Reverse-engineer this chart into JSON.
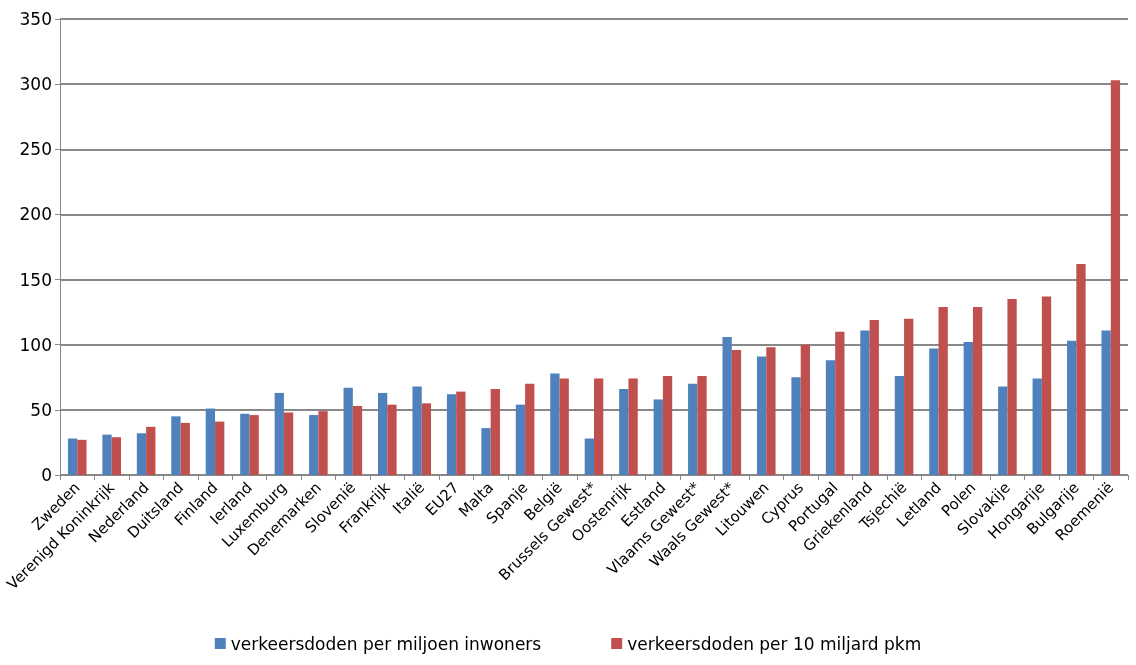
{
  "chart_data": {
    "type": "bar",
    "categories": [
      "Zweden",
      "Verenigd Koninkrijk",
      "Nederland",
      "Duitsland",
      "Finland",
      "Ierland",
      "Luxemburg",
      "Denemarken",
      "Slovenië",
      "Frankrijk",
      "Italië",
      "EU27",
      "Malta",
      "Spanje",
      "België",
      "Brussels Gewest*",
      "Oostenrijk",
      "Estland",
      "Vlaams Gewest*",
      "Waals Gewest*",
      "Litouwen",
      "Cyprus",
      "Portugal",
      "Griekenland",
      "Tsjechië",
      "Letland",
      "Polen",
      "Slovakije",
      "Hongarije",
      "Bulgarije",
      "Roemenië"
    ],
    "series": [
      {
        "name": "verkeersdoden per miljoen inwoners",
        "color": "#4f81bd",
        "values": [
          28,
          31,
          32,
          45,
          51,
          47,
          63,
          46,
          67,
          63,
          68,
          62,
          36,
          54,
          78,
          28,
          66,
          58,
          70,
          106,
          91,
          75,
          88,
          111,
          76,
          97,
          102,
          68,
          74,
          103,
          111
        ]
      },
      {
        "name": "verkeersdoden per 10 miljard pkm",
        "color": "#c0504d",
        "values": [
          27,
          29,
          37,
          40,
          41,
          46,
          48,
          49,
          53,
          54,
          55,
          64,
          66,
          70,
          74,
          74,
          74,
          76,
          76,
          96,
          98,
          100,
          110,
          119,
          120,
          129,
          129,
          135,
          137,
          162,
          303
        ]
      }
    ],
    "ylim": [
      0,
      350
    ],
    "yticks": [
      0,
      50,
      100,
      150,
      200,
      250,
      300,
      350
    ],
    "grid": "y",
    "legend": "bottom"
  }
}
